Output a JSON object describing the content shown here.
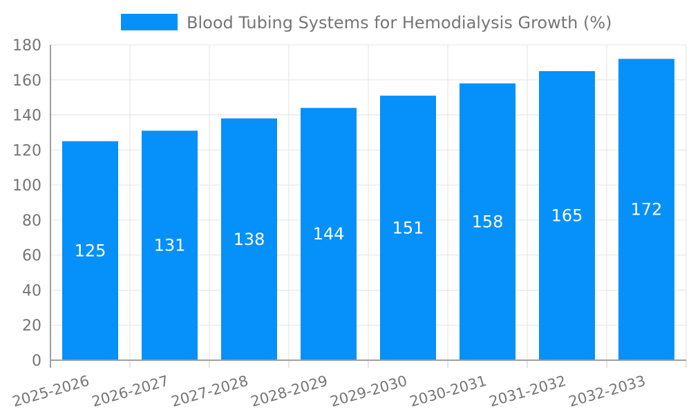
{
  "colors": {
    "grid": "#e3e3e3",
    "axis_line": "#9e9e9e",
    "tick": "#c9c9c9",
    "axis_text": "#757575",
    "bar_label": "#ffffff",
    "background": "#ffffff"
  },
  "chart_data": {
    "type": "bar",
    "title": "",
    "legend": {
      "position": "top",
      "entries": [
        "Blood Tubing Systems for Hemodialysis Growth (%)"
      ]
    },
    "categories": [
      "2025-2026",
      "2026-2027",
      "2027-2028",
      "2028-2029",
      "2029-2030",
      "2030-2031",
      "2031-2032",
      "2032-2033"
    ],
    "values": [
      125,
      131,
      138,
      144,
      151,
      158,
      165,
      172
    ],
    "color": "#0690fa",
    "xlabel": "",
    "ylabel": "",
    "ylim": [
      0,
      180
    ],
    "yticks": [
      0,
      20,
      40,
      60,
      80,
      100,
      120,
      140,
      160,
      180
    ],
    "grid": true,
    "bar_labels_inside": true,
    "x_label_rotation_deg": -16
  }
}
